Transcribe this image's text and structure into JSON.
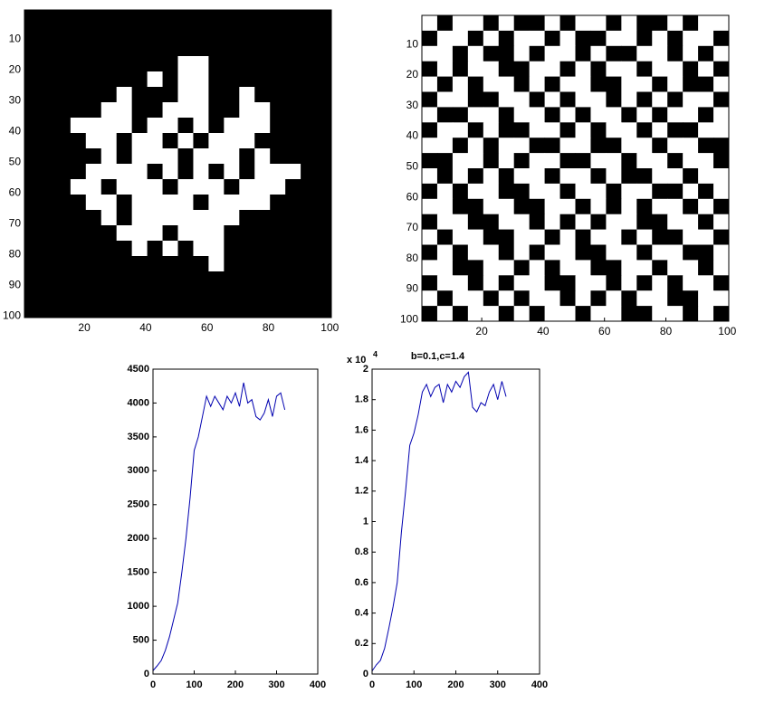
{
  "chart_data": [
    {
      "type": "image",
      "colors": [
        "#000000",
        "#ffffff"
      ],
      "xlim": [
        0.5,
        100.5
      ],
      "ylim": [
        0.5,
        100.5
      ],
      "yreverse": true,
      "xticks": [
        20,
        40,
        60,
        80,
        100
      ],
      "yticks": [
        10,
        20,
        30,
        40,
        50,
        60,
        70,
        80,
        90,
        100
      ],
      "values": [
        [
          0,
          0,
          0,
          0,
          0,
          0,
          0,
          0,
          0,
          0,
          0,
          0,
          0,
          0,
          0,
          0,
          0,
          0,
          0,
          0
        ],
        [
          0,
          0,
          0,
          0,
          0,
          0,
          0,
          0,
          0,
          0,
          0,
          0,
          0,
          0,
          0,
          0,
          0,
          0,
          0,
          0
        ],
        [
          0,
          0,
          0,
          0,
          0,
          0,
          0,
          0,
          0,
          0,
          0,
          0,
          0,
          0,
          0,
          0,
          0,
          0,
          0,
          0
        ],
        [
          0,
          0,
          0,
          0,
          0,
          0,
          0,
          0,
          0,
          0,
          1,
          1,
          0,
          0,
          0,
          0,
          0,
          0,
          0,
          0
        ],
        [
          0,
          0,
          0,
          0,
          0,
          0,
          0,
          0,
          1,
          0,
          1,
          1,
          0,
          0,
          0,
          0,
          0,
          0,
          0,
          0
        ],
        [
          0,
          0,
          0,
          0,
          0,
          0,
          1,
          0,
          0,
          0,
          1,
          1,
          0,
          0,
          1,
          0,
          0,
          0,
          0,
          0
        ],
        [
          0,
          0,
          0,
          0,
          0,
          1,
          1,
          0,
          0,
          1,
          1,
          1,
          0,
          0,
          1,
          1,
          0,
          0,
          0,
          0
        ],
        [
          0,
          0,
          0,
          1,
          1,
          1,
          1,
          0,
          1,
          1,
          0,
          1,
          0,
          1,
          1,
          1,
          0,
          0,
          0,
          0
        ],
        [
          0,
          0,
          0,
          0,
          1,
          1,
          0,
          1,
          1,
          0,
          1,
          0,
          1,
          1,
          1,
          0,
          0,
          0,
          0,
          0
        ],
        [
          0,
          0,
          0,
          0,
          0,
          1,
          0,
          1,
          1,
          1,
          0,
          1,
          1,
          1,
          0,
          1,
          0,
          0,
          0,
          0
        ],
        [
          0,
          0,
          0,
          0,
          1,
          1,
          1,
          1,
          0,
          1,
          0,
          1,
          0,
          1,
          0,
          1,
          1,
          1,
          0,
          0
        ],
        [
          0,
          0,
          0,
          1,
          1,
          0,
          1,
          1,
          1,
          0,
          1,
          1,
          1,
          0,
          1,
          1,
          1,
          0,
          0,
          0
        ],
        [
          0,
          0,
          0,
          0,
          1,
          1,
          0,
          1,
          1,
          1,
          1,
          0,
          1,
          1,
          1,
          1,
          0,
          0,
          0,
          0
        ],
        [
          0,
          0,
          0,
          0,
          0,
          1,
          0,
          1,
          1,
          1,
          1,
          1,
          1,
          1,
          0,
          0,
          0,
          0,
          0,
          0
        ],
        [
          0,
          0,
          0,
          0,
          0,
          0,
          1,
          1,
          1,
          0,
          1,
          1,
          1,
          0,
          0,
          0,
          0,
          0,
          0,
          0
        ],
        [
          0,
          0,
          0,
          0,
          0,
          0,
          0,
          1,
          0,
          1,
          0,
          1,
          1,
          0,
          0,
          0,
          0,
          0,
          0,
          0
        ],
        [
          0,
          0,
          0,
          0,
          0,
          0,
          0,
          0,
          0,
          0,
          0,
          0,
          1,
          0,
          0,
          0,
          0,
          0,
          0,
          0
        ],
        [
          0,
          0,
          0,
          0,
          0,
          0,
          0,
          0,
          0,
          0,
          0,
          0,
          0,
          0,
          0,
          0,
          0,
          0,
          0,
          0
        ],
        [
          0,
          0,
          0,
          0,
          0,
          0,
          0,
          0,
          0,
          0,
          0,
          0,
          0,
          0,
          0,
          0,
          0,
          0,
          0,
          0
        ],
        [
          0,
          0,
          0,
          0,
          0,
          0,
          0,
          0,
          0,
          0,
          0,
          0,
          0,
          0,
          0,
          0,
          0,
          0,
          0,
          0
        ]
      ]
    },
    {
      "type": "image",
      "colors": [
        "#000000",
        "#ffffff"
      ],
      "xlim": [
        0.5,
        100.5
      ],
      "ylim": [
        0.5,
        100.5
      ],
      "yreverse": true,
      "xticks": [
        20,
        40,
        60,
        80,
        100
      ],
      "yticks": [
        10,
        20,
        30,
        40,
        50,
        60,
        70,
        80,
        90,
        100
      ],
      "values": [
        [
          1,
          0,
          1,
          1,
          0,
          1,
          0,
          0,
          1,
          0,
          1,
          1,
          0,
          1,
          0,
          0,
          1,
          0,
          1,
          1
        ],
        [
          0,
          1,
          1,
          0,
          1,
          0,
          1,
          1,
          0,
          1,
          0,
          0,
          1,
          1,
          0,
          1,
          0,
          1,
          1,
          0
        ],
        [
          1,
          1,
          0,
          1,
          0,
          0,
          1,
          0,
          1,
          1,
          0,
          1,
          0,
          0,
          1,
          1,
          0,
          1,
          0,
          1
        ],
        [
          0,
          1,
          0,
          1,
          1,
          0,
          0,
          1,
          1,
          0,
          1,
          0,
          1,
          1,
          0,
          1,
          1,
          0,
          1,
          0
        ],
        [
          1,
          0,
          1,
          0,
          1,
          1,
          0,
          1,
          0,
          1,
          1,
          0,
          0,
          1,
          1,
          0,
          1,
          0,
          0,
          1
        ],
        [
          0,
          1,
          1,
          0,
          0,
          1,
          1,
          0,
          1,
          0,
          1,
          1,
          0,
          1,
          0,
          1,
          0,
          1,
          1,
          0
        ],
        [
          1,
          0,
          0,
          1,
          1,
          0,
          1,
          1,
          0,
          1,
          0,
          1,
          1,
          0,
          1,
          0,
          1,
          1,
          0,
          1
        ],
        [
          0,
          1,
          1,
          0,
          1,
          0,
          0,
          1,
          1,
          0,
          1,
          0,
          1,
          1,
          0,
          1,
          0,
          0,
          1,
          1
        ],
        [
          1,
          1,
          0,
          1,
          0,
          1,
          1,
          0,
          0,
          1,
          1,
          0,
          0,
          1,
          1,
          0,
          1,
          1,
          0,
          0
        ],
        [
          0,
          0,
          1,
          1,
          0,
          1,
          0,
          1,
          1,
          0,
          0,
          1,
          1,
          0,
          1,
          1,
          0,
          1,
          1,
          0
        ],
        [
          1,
          0,
          1,
          0,
          1,
          0,
          1,
          1,
          0,
          1,
          1,
          0,
          1,
          0,
          0,
          1,
          1,
          0,
          1,
          1
        ],
        [
          0,
          1,
          0,
          1,
          1,
          0,
          0,
          1,
          1,
          0,
          1,
          1,
          0,
          1,
          1,
          0,
          0,
          1,
          0,
          1
        ],
        [
          1,
          1,
          0,
          0,
          1,
          1,
          0,
          0,
          1,
          1,
          0,
          1,
          0,
          1,
          0,
          1,
          1,
          0,
          1,
          0
        ],
        [
          0,
          1,
          1,
          0,
          0,
          1,
          1,
          0,
          1,
          0,
          1,
          0,
          1,
          1,
          0,
          0,
          1,
          1,
          0,
          1
        ],
        [
          1,
          0,
          1,
          1,
          0,
          0,
          1,
          1,
          0,
          1,
          0,
          1,
          1,
          0,
          1,
          0,
          0,
          1,
          1,
          0
        ],
        [
          0,
          1,
          0,
          1,
          1,
          0,
          1,
          0,
          1,
          1,
          0,
          0,
          1,
          1,
          0,
          1,
          1,
          0,
          0,
          1
        ],
        [
          1,
          1,
          0,
          0,
          1,
          1,
          0,
          1,
          0,
          1,
          1,
          0,
          0,
          1,
          1,
          0,
          1,
          1,
          0,
          1
        ],
        [
          0,
          1,
          1,
          0,
          1,
          0,
          1,
          1,
          0,
          0,
          1,
          1,
          0,
          1,
          0,
          1,
          0,
          1,
          1,
          0
        ],
        [
          1,
          0,
          1,
          1,
          0,
          1,
          0,
          1,
          1,
          0,
          1,
          0,
          1,
          0,
          1,
          1,
          0,
          0,
          1,
          1
        ],
        [
          0,
          1,
          0,
          1,
          1,
          0,
          1,
          0,
          1,
          1,
          0,
          1,
          1,
          0,
          0,
          1,
          1,
          0,
          1,
          0
        ]
      ]
    },
    {
      "type": "line",
      "color": "#0000b0",
      "xlim": [
        0,
        400
      ],
      "ylim": [
        0,
        4500
      ],
      "xticks": [
        0,
        100,
        200,
        300,
        400
      ],
      "yticks": [
        0,
        500,
        1000,
        1500,
        2000,
        2500,
        3000,
        3500,
        4000,
        4500
      ],
      "x": [
        0,
        10,
        20,
        30,
        40,
        50,
        60,
        70,
        80,
        90,
        100,
        110,
        120,
        130,
        140,
        150,
        160,
        170,
        180,
        190,
        200,
        210,
        220,
        230,
        240,
        250,
        260,
        270,
        280,
        290,
        300,
        310,
        320
      ],
      "values": [
        50,
        120,
        200,
        350,
        550,
        800,
        1050,
        1500,
        2000,
        2600,
        3300,
        3500,
        3800,
        4100,
        3950,
        4100,
        4000,
        3900,
        4100,
        4000,
        4150,
        3950,
        4300,
        4000,
        4050,
        3800,
        3750,
        3850,
        4050,
        3800,
        4100,
        4150,
        3900
      ]
    },
    {
      "type": "line",
      "color": "#0000b0",
      "title": "b=0.1,c=1.4",
      "y_multiplier": "x 10",
      "y_exponent": 4,
      "xlim": [
        0,
        400
      ],
      "ylim": [
        0,
        2
      ],
      "xticks": [
        0,
        100,
        200,
        300,
        400
      ],
      "yticks": [
        0,
        0.2,
        0.4,
        0.6,
        0.8,
        1,
        1.2,
        1.4,
        1.6,
        1.8,
        2
      ],
      "x": [
        0,
        10,
        20,
        30,
        40,
        50,
        60,
        70,
        80,
        90,
        100,
        110,
        120,
        130,
        140,
        150,
        160,
        170,
        180,
        190,
        200,
        210,
        220,
        230,
        240,
        250,
        260,
        270,
        280,
        290,
        300,
        310,
        320
      ],
      "values": [
        0.02,
        0.06,
        0.09,
        0.17,
        0.3,
        0.44,
        0.6,
        0.93,
        1.2,
        1.5,
        1.58,
        1.7,
        1.85,
        1.9,
        1.82,
        1.88,
        1.9,
        1.78,
        1.9,
        1.85,
        1.92,
        1.88,
        1.95,
        1.98,
        1.75,
        1.72,
        1.78,
        1.76,
        1.85,
        1.9,
        1.8,
        1.92,
        1.82
      ]
    }
  ]
}
